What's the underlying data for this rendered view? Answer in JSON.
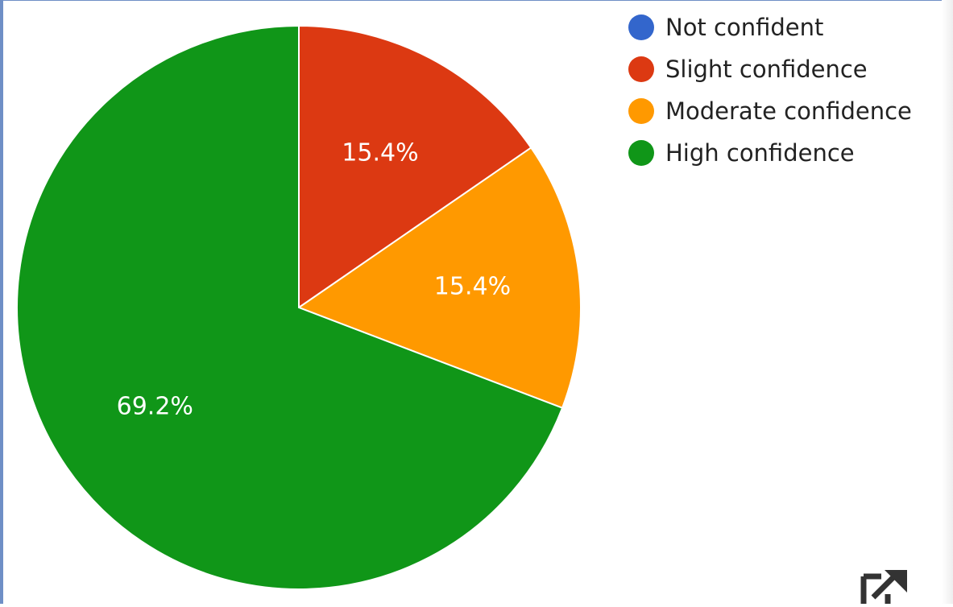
{
  "chart_data": {
    "type": "pie",
    "categories": [
      "Not confident",
      "Slight confidence",
      "Moderate confidence",
      "High confidence"
    ],
    "values": [
      0.0,
      15.4,
      15.4,
      69.2
    ],
    "value_labels": [
      "",
      "15.4%",
      "15.4%",
      "69.2%"
    ],
    "colors": [
      "#3366cc",
      "#dc3912",
      "#ff9900",
      "#109618"
    ],
    "start_angle_deg": 0,
    "direction": "clockwise",
    "legend_position": "right"
  },
  "legend": {
    "items": [
      {
        "label": "Not confident",
        "color": "#3366cc"
      },
      {
        "label": "Slight confidence",
        "color": "#dc3912"
      },
      {
        "label": "Moderate confidence",
        "color": "#ff9900"
      },
      {
        "label": "High confidence",
        "color": "#109618"
      }
    ]
  },
  "icons": {
    "popout": "open-in-new-window-icon"
  }
}
